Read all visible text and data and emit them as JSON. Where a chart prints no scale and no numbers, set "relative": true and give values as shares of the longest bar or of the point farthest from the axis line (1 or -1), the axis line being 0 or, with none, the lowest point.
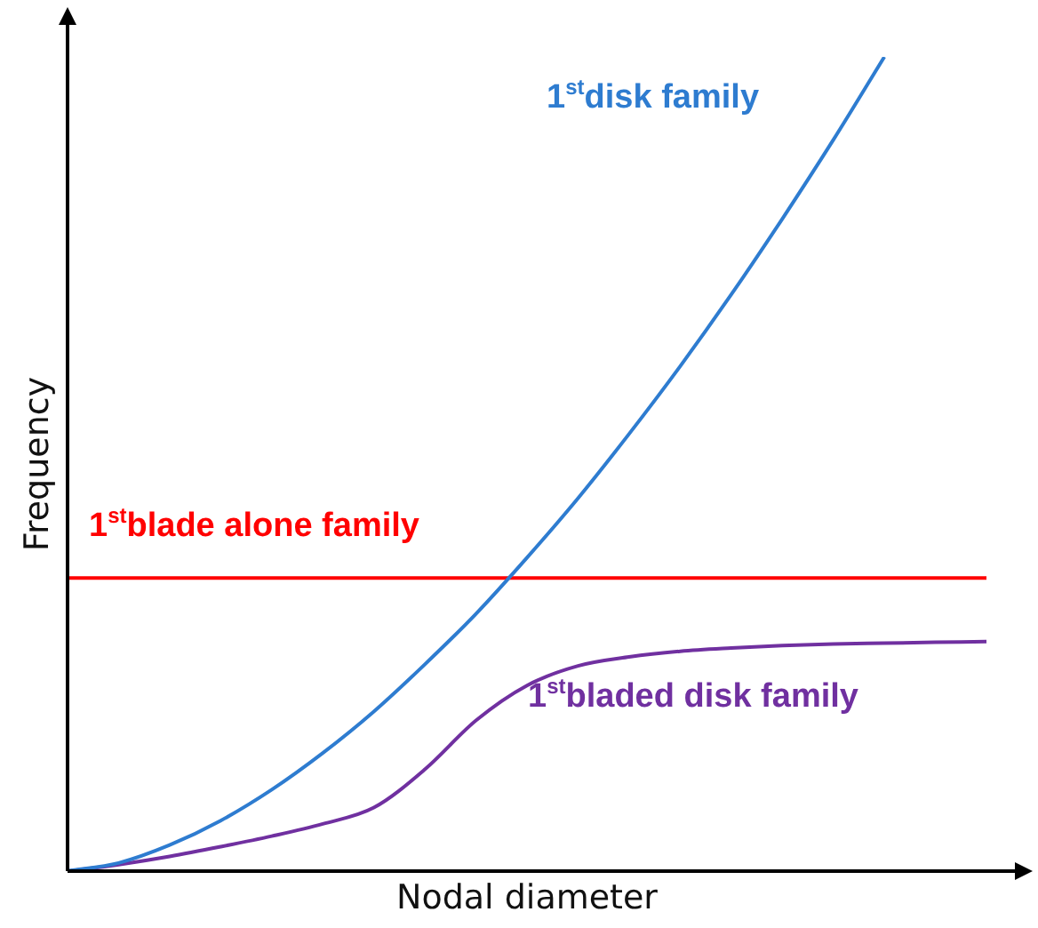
{
  "chart_data": {
    "type": "line",
    "relative": true,
    "xlabel": "Nodal diameter",
    "ylabel": "Frequency",
    "legend": false,
    "marker": "none",
    "line_style": "solid",
    "categories": [
      null,
      null,
      null,
      null,
      null,
      null,
      null,
      null,
      null,
      null,
      null,
      null,
      null,
      null,
      null,
      null,
      null,
      null,
      null
    ],
    "series": [
      {
        "name": "1$^{st}$disk family",
        "color": "#2e7cd0",
        "values": [
          0,
          0.01,
          0.032,
          0.062,
          0.1,
          0.145,
          0.196,
          0.254,
          0.316,
          0.385,
          0.458,
          0.537,
          0.62,
          0.708,
          0.801,
          0.898,
          1,
          null,
          null
        ]
      },
      {
        "name": "1$^{st}$blade alone family",
        "color": "#ff0000",
        "values": [
          0.36,
          0.36,
          0.36,
          0.36,
          0.36,
          0.36,
          0.36,
          0.36,
          0.36,
          0.36,
          0.36,
          0.36,
          0.36,
          0.36,
          0.36,
          0.36,
          0.36,
          0.36,
          0.36
        ]
      },
      {
        "name": "1$^{st}$bladed disk family",
        "color": "#7030a0",
        "values": [
          0,
          0.008,
          0.018,
          0.03,
          0.043,
          0.058,
          0.078,
          0.125,
          0.185,
          0.228,
          0.252,
          0.263,
          0.27,
          0.274,
          0.277,
          0.279,
          0.28,
          0.281,
          0.282
        ]
      }
    ]
  }
}
